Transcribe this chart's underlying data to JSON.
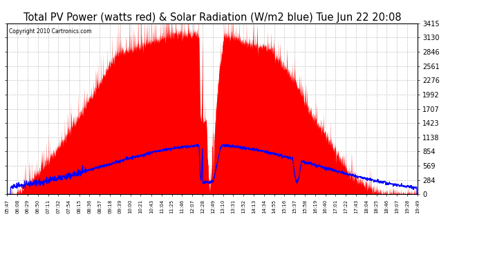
{
  "title": "Total PV Power (watts red) & Solar Radiation (W/m2 blue) Tue Jun 22 20:08",
  "copyright": "Copyright 2010 Cartronics.com",
  "title_fontsize": 10.5,
  "background_color": "#ffffff",
  "plot_bg_color": "#ffffff",
  "grid_color": "#bbbbbb",
  "pv_color": "#ff0000",
  "solar_color": "#0000ff",
  "ymax": 3414.6,
  "yticks": [
    0.0,
    284.5,
    569.1,
    853.6,
    1138.2,
    1422.7,
    1707.3,
    1991.8,
    2276.4,
    2560.9,
    2845.5,
    3130.0,
    3414.6
  ],
  "x_tick_labels": [
    "05:47",
    "06:08",
    "06:29",
    "06:50",
    "07:11",
    "07:32",
    "07:54",
    "08:15",
    "08:36",
    "08:57",
    "09:18",
    "09:39",
    "10:00",
    "10:21",
    "10:43",
    "11:04",
    "11:25",
    "11:46",
    "12:07",
    "12:28",
    "12:49",
    "13:10",
    "13:31",
    "13:52",
    "14:13",
    "14:34",
    "14:55",
    "15:16",
    "15:37",
    "15:58",
    "16:19",
    "16:40",
    "17:01",
    "17:22",
    "17:43",
    "18:04",
    "18:25",
    "18:46",
    "19:07",
    "19:28",
    "19:49"
  ]
}
